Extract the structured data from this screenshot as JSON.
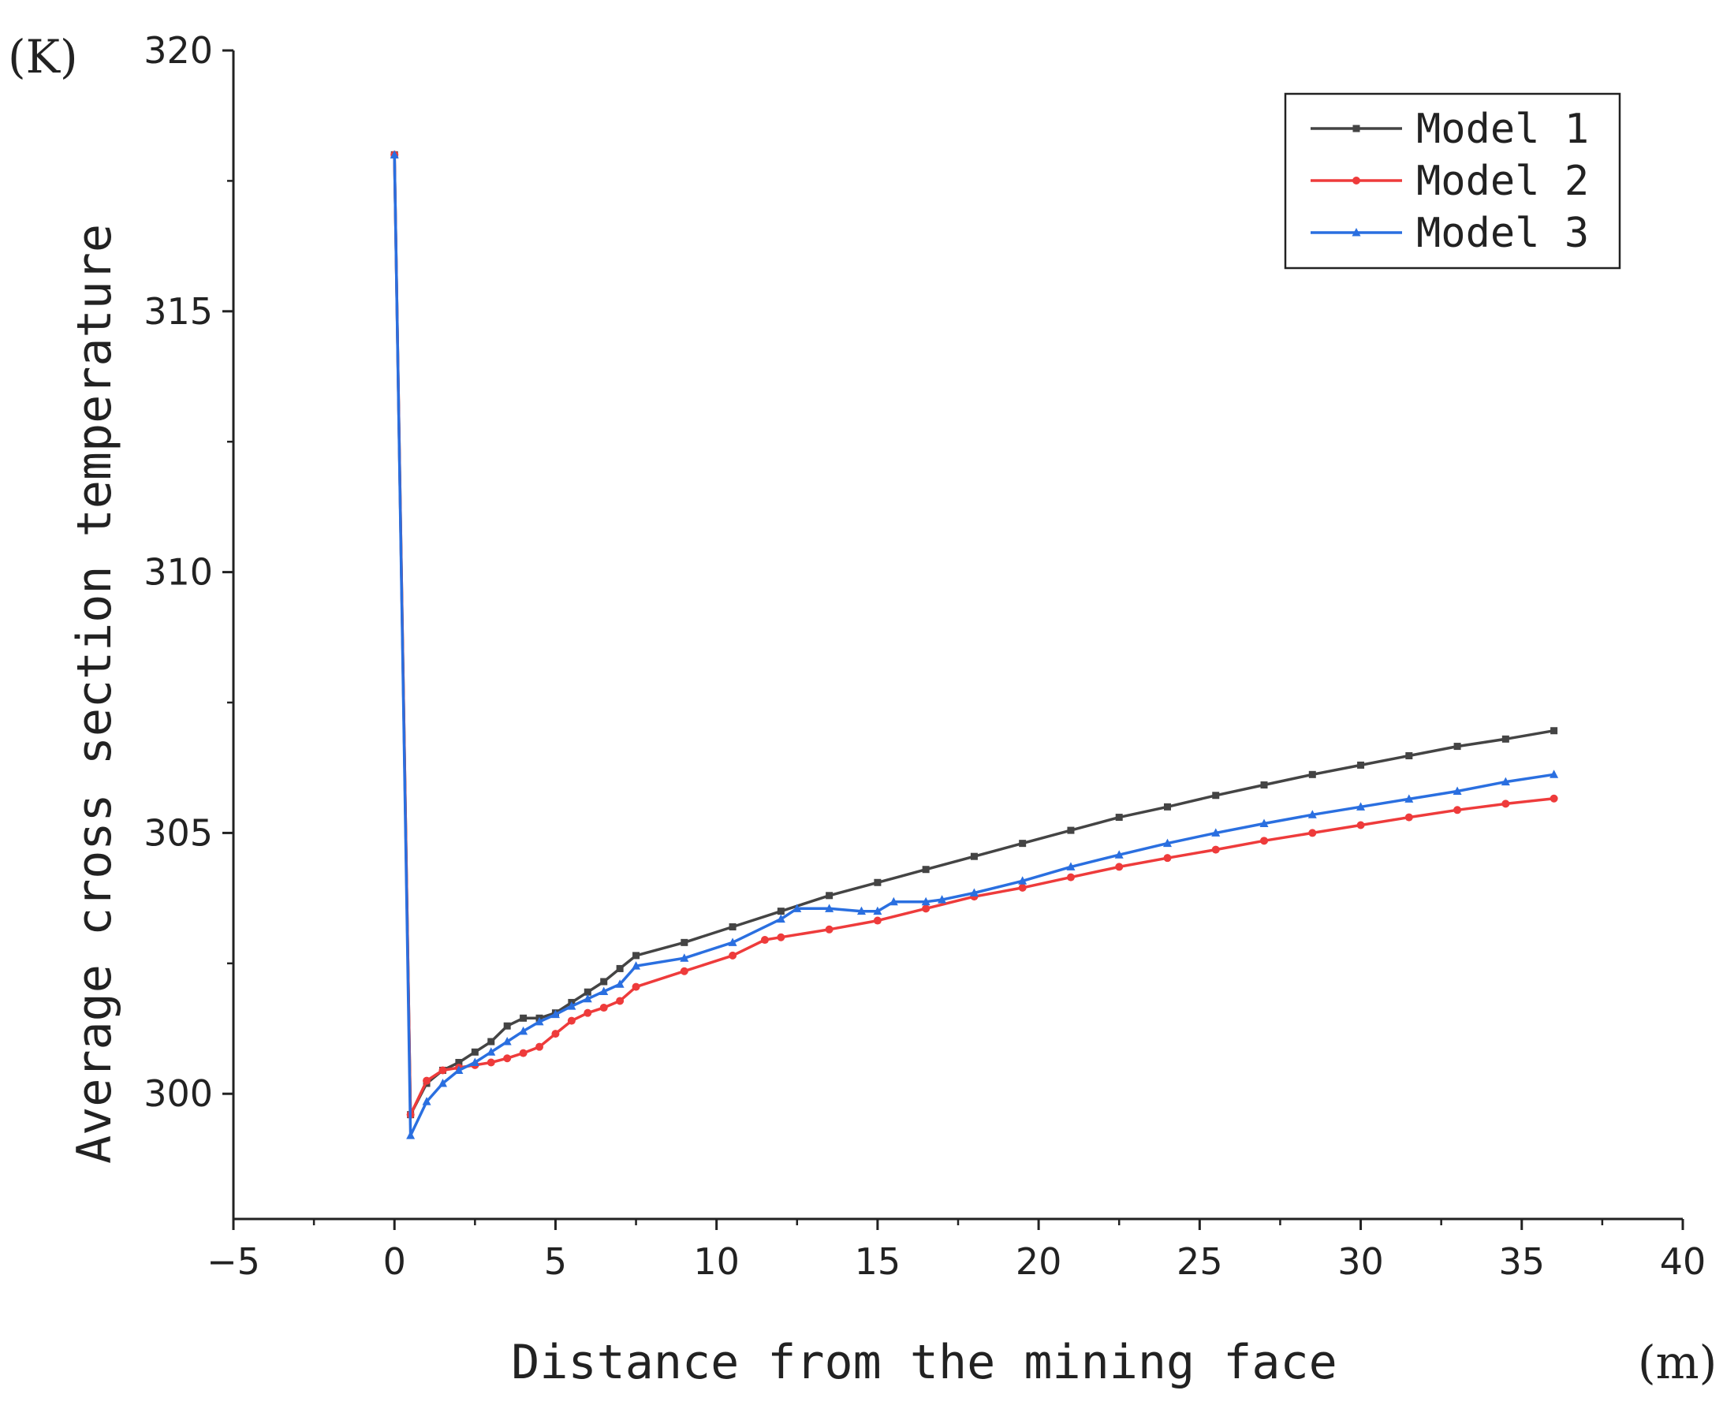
{
  "chart_data": {
    "type": "line",
    "xlabel": "Distance from the mining face",
    "ylabel": "Average cross section temperature",
    "x_unit": "(m)",
    "y_unit": "(K)",
    "xlim": [
      -5,
      40
    ],
    "ylim": [
      297.6,
      320
    ],
    "x_ticks": [
      -5,
      0,
      5,
      10,
      15,
      20,
      25,
      30,
      35,
      40
    ],
    "x_tick_labels": [
      "−5",
      "0",
      "5",
      "10",
      "15",
      "20",
      "25",
      "30",
      "35",
      "40"
    ],
    "y_ticks": [
      300,
      305,
      310,
      315,
      320
    ],
    "y_tick_labels": [
      "300",
      "305",
      "310",
      "315",
      "320"
    ],
    "legend_position": "top-right",
    "grid": false,
    "series": [
      {
        "name": "Model 1",
        "color": "#444444",
        "marker": "square",
        "x": [
          0,
          0.5,
          1,
          1.5,
          2,
          2.5,
          3,
          3.5,
          4,
          4.5,
          5,
          5.5,
          6,
          6.5,
          7,
          7.5,
          9,
          10.5,
          12,
          13.5,
          15,
          16.5,
          18,
          19.5,
          21,
          22.5,
          24,
          25.5,
          27,
          28.5,
          30,
          31.5,
          33,
          34.5,
          36
        ],
        "y": [
          318.0,
          299.6,
          300.2,
          300.45,
          300.6,
          300.8,
          301.0,
          301.3,
          301.45,
          301.45,
          301.55,
          301.75,
          301.95,
          302.15,
          302.4,
          302.65,
          302.9,
          303.2,
          303.5,
          303.8,
          304.05,
          304.3,
          304.55,
          304.8,
          305.05,
          305.3,
          305.5,
          305.72,
          305.92,
          306.12,
          306.3,
          306.48,
          306.66,
          306.8,
          306.96
        ]
      },
      {
        "name": "Model 2",
        "color": "#ee3b3b",
        "marker": "circle",
        "x": [
          0,
          0.5,
          1,
          1.5,
          2,
          2.5,
          3,
          3.5,
          4,
          4.5,
          5,
          5.5,
          6,
          6.5,
          7,
          7.5,
          9,
          10.5,
          11.5,
          12,
          13.5,
          15,
          16.5,
          18,
          19.5,
          21,
          22.5,
          24,
          25.5,
          27,
          28.5,
          30,
          31.5,
          33,
          34.5,
          36
        ],
        "y": [
          318.0,
          299.6,
          300.25,
          300.45,
          300.5,
          300.55,
          300.6,
          300.68,
          300.78,
          300.9,
          301.15,
          301.4,
          301.55,
          301.65,
          301.78,
          302.05,
          302.35,
          302.65,
          302.95,
          303.0,
          303.15,
          303.32,
          303.55,
          303.78,
          303.95,
          304.15,
          304.35,
          304.52,
          304.68,
          304.85,
          305.0,
          305.15,
          305.3,
          305.44,
          305.56,
          305.66
        ]
      },
      {
        "name": "Model 3",
        "color": "#2a6fe0",
        "marker": "triangle",
        "x": [
          0,
          0.5,
          1,
          1.5,
          2,
          2.5,
          3,
          3.5,
          4,
          4.5,
          5,
          5.5,
          6,
          6.5,
          7,
          7.5,
          9,
          10.5,
          12,
          12.5,
          13.5,
          14.5,
          15,
          15.5,
          16.5,
          17,
          18,
          19.5,
          21,
          22.5,
          24,
          25.5,
          27,
          28.5,
          30,
          31.5,
          33,
          34.5,
          36
        ],
        "y": [
          318.0,
          299.2,
          299.85,
          300.2,
          300.45,
          300.6,
          300.8,
          301.0,
          301.2,
          301.38,
          301.52,
          301.68,
          301.82,
          301.96,
          302.1,
          302.45,
          302.6,
          302.9,
          303.35,
          303.55,
          303.55,
          303.5,
          303.5,
          303.68,
          303.68,
          303.72,
          303.85,
          304.08,
          304.35,
          304.58,
          304.8,
          305.0,
          305.18,
          305.35,
          305.5,
          305.65,
          305.8,
          305.98,
          306.12
        ]
      }
    ]
  }
}
